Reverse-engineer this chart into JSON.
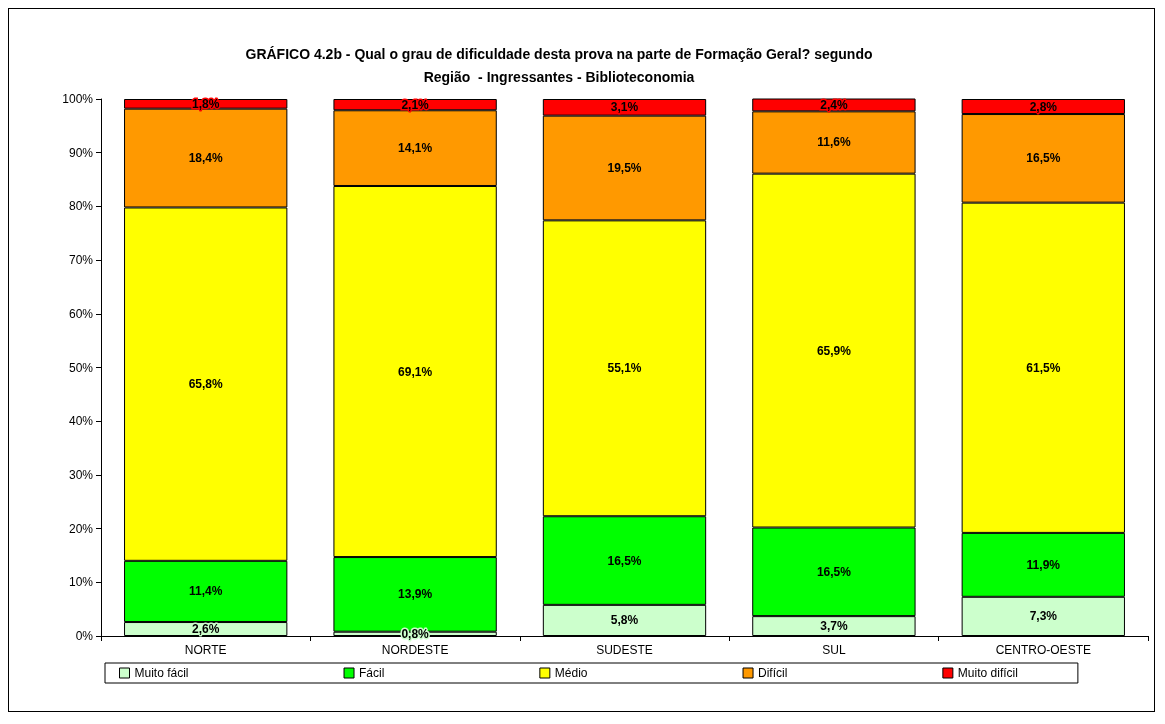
{
  "chart_data": {
    "type": "bar",
    "stacked": true,
    "title": "GRÁFICO 4.2b - Qual o grau de dificuldade desta prova na parte de Formação Geral? segundo\nRegião  - Ingressantes - Biblioteconomia",
    "categories": [
      "NORTE",
      "NORDESTE",
      "SUDESTE",
      "SUL",
      "CENTRO-OESTE"
    ],
    "series": [
      {
        "name": "Muito fácil",
        "color": "#ccffcc",
        "values": [
          2.6,
          0.8,
          5.8,
          3.7,
          7.3
        ],
        "value_labels": [
          "2,6%",
          "0,8%",
          "5,8%",
          "3,7%",
          "7,3%"
        ]
      },
      {
        "name": "Fácil",
        "color": "#00ff00",
        "values": [
          11.4,
          13.9,
          16.5,
          16.5,
          11.9
        ],
        "value_labels": [
          "11,4%",
          "13,9%",
          "16,5%",
          "16,5%",
          "11,9%"
        ]
      },
      {
        "name": "Médio",
        "color": "#ffff00",
        "values": [
          65.8,
          69.1,
          55.1,
          65.9,
          61.5
        ],
        "value_labels": [
          "65,8%",
          "69,1%",
          "55,1%",
          "65,9%",
          "61,5%"
        ]
      },
      {
        "name": "Difícil",
        "color": "#ff9900",
        "values": [
          18.4,
          14.1,
          19.5,
          11.6,
          16.5
        ],
        "value_labels": [
          "18,4%",
          "14,1%",
          "19,5%",
          "11,6%",
          "16,5%"
        ]
      },
      {
        "name": "Muito difícil",
        "color": "#ff0000",
        "values": [
          1.8,
          2.1,
          3.1,
          2.4,
          2.8
        ],
        "value_labels": [
          "1,8%",
          "2,1%",
          "3,1%",
          "2,4%",
          "2,8%"
        ]
      }
    ],
    "ylim": [
      0,
      100
    ],
    "yticks": [
      {
        "value": 0,
        "label": "0%"
      },
      {
        "value": 10,
        "label": "10%"
      },
      {
        "value": 20,
        "label": "20%"
      },
      {
        "value": 30,
        "label": "30%"
      },
      {
        "value": 40,
        "label": "40%"
      },
      {
        "value": 50,
        "label": "50%"
      },
      {
        "value": 60,
        "label": "60%"
      },
      {
        "value": 70,
        "label": "70%"
      },
      {
        "value": 80,
        "label": "80%"
      },
      {
        "value": 90,
        "label": "90%"
      },
      {
        "value": 100,
        "label": "100%"
      }
    ],
    "grid": false,
    "legend": "bottom"
  }
}
